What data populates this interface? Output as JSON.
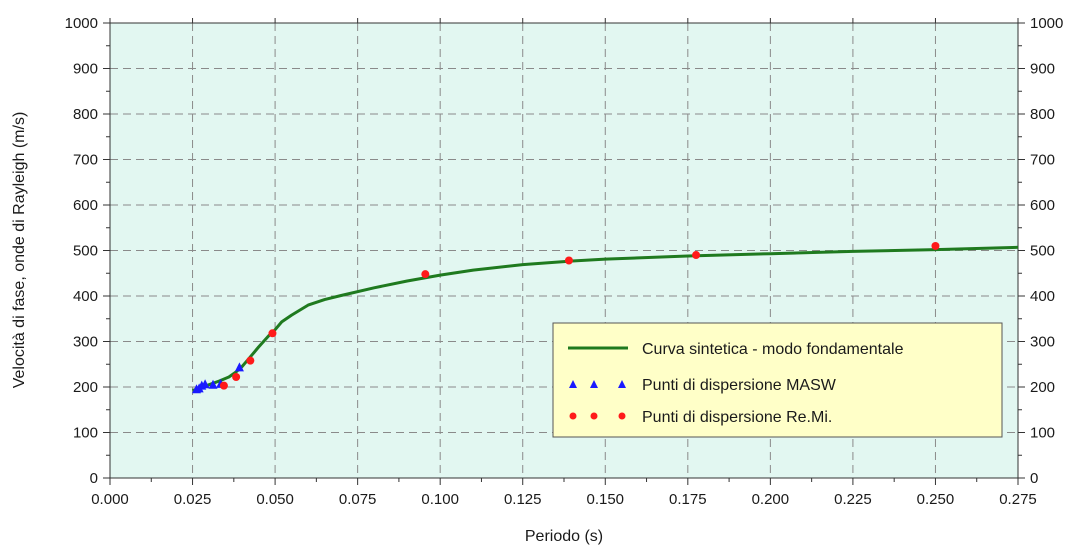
{
  "chart_data": {
    "type": "line",
    "title": "",
    "xlabel": "Periodo (s)",
    "ylabel": "Velocità di fase, onde di Rayleigh (m/s)",
    "xlim": [
      0.0,
      0.275
    ],
    "ylim": [
      0,
      1000
    ],
    "x_ticks": [
      "0.000",
      "0.025",
      "0.050",
      "0.075",
      "0.100",
      "0.125",
      "0.150",
      "0.175",
      "0.200",
      "0.225",
      "0.250",
      "0.275"
    ],
    "y_ticks": [
      "0",
      "100",
      "200",
      "300",
      "400",
      "500",
      "600",
      "700",
      "800",
      "900",
      "1000"
    ],
    "grid": true,
    "legend_position": "bottom-right",
    "colors": {
      "plot_background": "#e2f7f1",
      "curve": "#1f7a1f",
      "masw": "#1a1aff",
      "remi": "#ff1a1a",
      "legend_background": "#ffffc8",
      "grid": "#8a8a8a"
    },
    "series": [
      {
        "name": "Curva sintetica - modo fondamentale",
        "kind": "line",
        "x": [
          0.025,
          0.027,
          0.03,
          0.033,
          0.036,
          0.038,
          0.04,
          0.042,
          0.045,
          0.048,
          0.05,
          0.052,
          0.055,
          0.06,
          0.065,
          0.07,
          0.08,
          0.09,
          0.1,
          0.11,
          0.125,
          0.14,
          0.15,
          0.175,
          0.2,
          0.225,
          0.25,
          0.275
        ],
        "y": [
          192,
          197,
          205,
          213,
          222,
          232,
          245,
          262,
          288,
          312,
          326,
          343,
          358,
          380,
          392,
          401,
          418,
          433,
          446,
          457,
          469,
          477,
          481,
          488,
          493,
          498,
          502,
          507
        ]
      },
      {
        "name": "Punti di dispersione MASW",
        "kind": "scatter",
        "marker": "triangle",
        "x": [
          0.0262,
          0.027,
          0.0278,
          0.0288,
          0.0312,
          0.0335,
          0.0392
        ],
        "y": [
          195,
          197,
          203,
          206,
          205,
          207,
          243
        ]
      },
      {
        "name": "Punti di dispersione Re.Mi.",
        "kind": "scatter",
        "marker": "circle",
        "x": [
          0.0345,
          0.0382,
          0.0425,
          0.0492,
          0.0955,
          0.139,
          0.1775,
          0.25
        ],
        "y": [
          203,
          222,
          258,
          318,
          448,
          478,
          490,
          510
        ]
      }
    ]
  }
}
